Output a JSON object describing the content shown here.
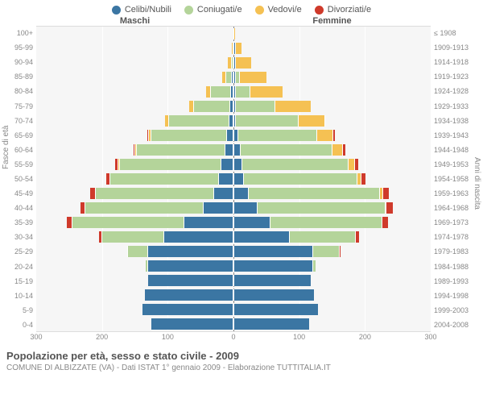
{
  "legend": [
    {
      "label": "Celibi/Nubili",
      "color": "#3b76a3"
    },
    {
      "label": "Coniugati/e",
      "color": "#b4d49a"
    },
    {
      "label": "Vedovi/e",
      "color": "#f5c153"
    },
    {
      "label": "Divorziati/e",
      "color": "#cf3a2b"
    }
  ],
  "header_male": "Maschi",
  "header_female": "Femmine",
  "axis_left_label": "Fasce di età",
  "axis_right_label": "Anni di nascita",
  "footer_title": "Popolazione per età, sesso e stato civile - 2009",
  "footer_sub": "COMUNE DI ALBIZZATE (VA) - Dati ISTAT 1° gennaio 2009 - Elaborazione TUTTITALIA.IT",
  "plot": {
    "background": "#f6f6f6",
    "grid_color": "#ffffff",
    "center_line_color": "#888888",
    "segment_border": "#ffffff"
  },
  "x_axis": {
    "max": 300,
    "ticks": [
      300,
      200,
      100,
      0,
      100,
      200,
      300
    ]
  },
  "age_labels": [
    "100+",
    "95-99",
    "90-94",
    "85-89",
    "80-84",
    "75-79",
    "70-74",
    "65-69",
    "60-64",
    "55-59",
    "50-54",
    "45-49",
    "40-44",
    "35-39",
    "30-34",
    "25-29",
    "20-24",
    "15-19",
    "10-14",
    "5-9",
    "0-4"
  ],
  "birth_labels": [
    "≤ 1908",
    "1909-1913",
    "1914-1918",
    "1919-1923",
    "1924-1928",
    "1929-1933",
    "1934-1938",
    "1939-1943",
    "1944-1948",
    "1949-1953",
    "1954-1958",
    "1959-1963",
    "1964-1968",
    "1969-1973",
    "1974-1978",
    "1979-1983",
    "1984-1988",
    "1989-1993",
    "1994-1998",
    "1999-2003",
    "2004-2008"
  ],
  "rows": [
    {
      "m": [
        0,
        0,
        0,
        0
      ],
      "f": [
        0,
        0,
        2,
        0
      ]
    },
    {
      "m": [
        0,
        0,
        2,
        0
      ],
      "f": [
        2,
        0,
        10,
        0
      ]
    },
    {
      "m": [
        0,
        3,
        5,
        0
      ],
      "f": [
        2,
        0,
        25,
        0
      ]
    },
    {
      "m": [
        3,
        8,
        6,
        0
      ],
      "f": [
        3,
        5,
        42,
        0
      ]
    },
    {
      "m": [
        4,
        30,
        8,
        0
      ],
      "f": [
        3,
        22,
        50,
        0
      ]
    },
    {
      "m": [
        5,
        55,
        7,
        0
      ],
      "f": [
        3,
        60,
        55,
        0
      ]
    },
    {
      "m": [
        6,
        92,
        6,
        0
      ],
      "f": [
        3,
        95,
        40,
        2
      ]
    },
    {
      "m": [
        10,
        115,
        4,
        2
      ],
      "f": [
        6,
        120,
        25,
        3
      ]
    },
    {
      "m": [
        12,
        135,
        2,
        3
      ],
      "f": [
        10,
        140,
        15,
        5
      ]
    },
    {
      "m": [
        18,
        155,
        2,
        5
      ],
      "f": [
        12,
        162,
        10,
        6
      ]
    },
    {
      "m": [
        22,
        165,
        0,
        6
      ],
      "f": [
        15,
        172,
        6,
        8
      ]
    },
    {
      "m": [
        30,
        180,
        0,
        8
      ],
      "f": [
        22,
        200,
        4,
        10
      ]
    },
    {
      "m": [
        45,
        180,
        0,
        8
      ],
      "f": [
        35,
        195,
        2,
        10
      ]
    },
    {
      "m": [
        75,
        170,
        0,
        8
      ],
      "f": [
        55,
        170,
        0,
        10
      ]
    },
    {
      "m": [
        105,
        95,
        0,
        4
      ],
      "f": [
        85,
        100,
        0,
        6
      ]
    },
    {
      "m": [
        130,
        30,
        0,
        2
      ],
      "f": [
        120,
        40,
        0,
        3
      ]
    },
    {
      "m": [
        130,
        3,
        0,
        0
      ],
      "f": [
        120,
        5,
        0,
        0
      ]
    },
    {
      "m": [
        130,
        0,
        0,
        0
      ],
      "f": [
        118,
        0,
        0,
        0
      ]
    },
    {
      "m": [
        135,
        0,
        0,
        0
      ],
      "f": [
        122,
        0,
        0,
        0
      ]
    },
    {
      "m": [
        138,
        0,
        0,
        0
      ],
      "f": [
        128,
        0,
        0,
        0
      ]
    },
    {
      "m": [
        125,
        0,
        0,
        0
      ],
      "f": [
        115,
        0,
        0,
        0
      ]
    }
  ]
}
